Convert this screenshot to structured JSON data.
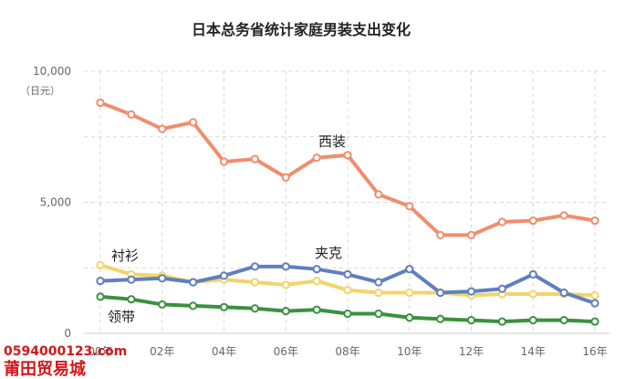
{
  "chart_data": {
    "type": "line",
    "title": "日本总务省统计家庭男装支出变化",
    "ylabel": "（日元）",
    "xlabel": "",
    "ylim": [
      0,
      10000
    ],
    "yticks": [
      "0",
      "5,000",
      "10,000"
    ],
    "x": [
      2000,
      2001,
      2002,
      2003,
      2004,
      2005,
      2006,
      2007,
      2008,
      2009,
      2010,
      2011,
      2012,
      2013,
      2014,
      2015,
      2016
    ],
    "xticks": [
      "00年",
      "02年",
      "04年",
      "06年",
      "08年",
      "10年",
      "12年",
      "14年",
      "16年"
    ],
    "grid": true,
    "series": [
      {
        "name": "西装",
        "color": "#f08d6e",
        "values": [
          8800,
          8350,
          7800,
          8050,
          6550,
          6650,
          5950,
          6700,
          6800,
          5300,
          4850,
          3750,
          3750,
          4250,
          4300,
          4500,
          4300
        ]
      },
      {
        "name": "衬衫",
        "color": "#f2d46a",
        "values": [
          2600,
          2250,
          2200,
          1950,
          2050,
          1950,
          1850,
          2000,
          1650,
          1550,
          1550,
          1550,
          1450,
          1500,
          1500,
          1500,
          1450
        ]
      },
      {
        "name": "夹克",
        "color": "#5f7fbf",
        "values": [
          2000,
          2050,
          2100,
          1950,
          2200,
          2550,
          2550,
          2450,
          2250,
          1950,
          2450,
          1550,
          1600,
          1700,
          2250,
          1550,
          1150
        ]
      },
      {
        "name": "领带",
        "color": "#3a9140",
        "values": [
          1400,
          1300,
          1100,
          1050,
          1000,
          950,
          850,
          900,
          750,
          750,
          600,
          550,
          500,
          450,
          500,
          500,
          450
        ]
      }
    ]
  },
  "watermark": {
    "number": "0594000123.com",
    "name": "莆田贸易城"
  }
}
